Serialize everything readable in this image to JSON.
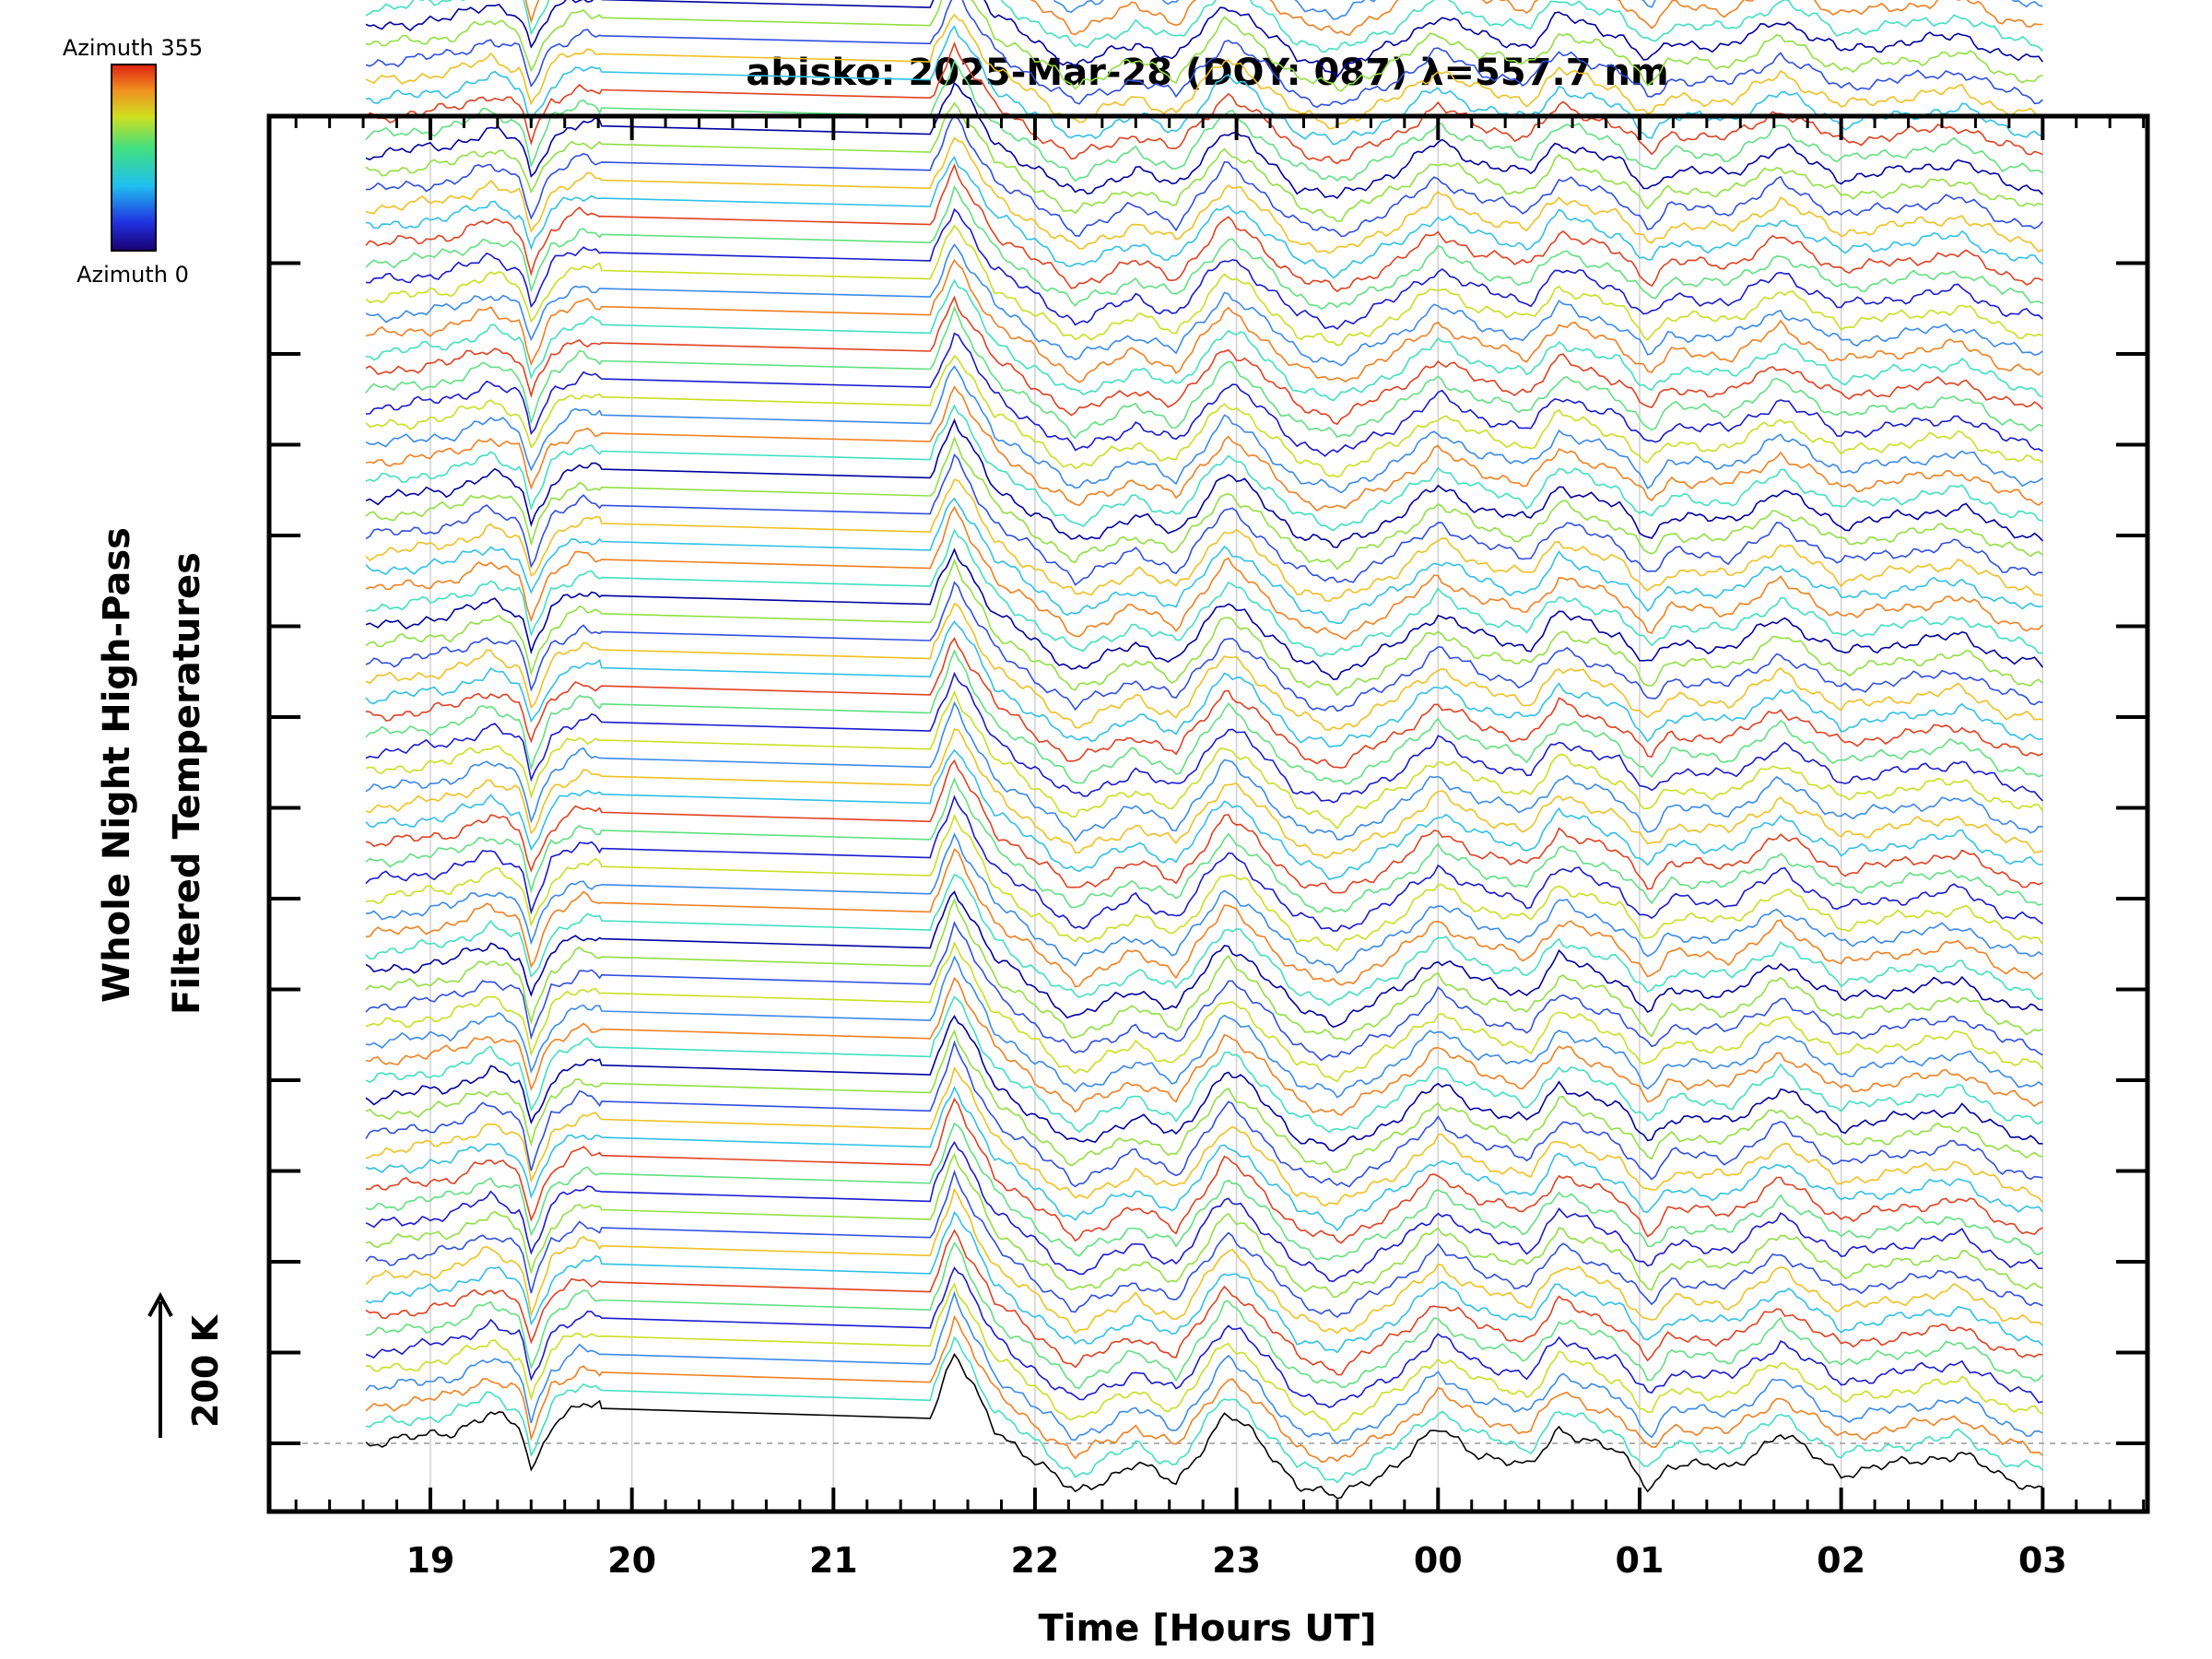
{
  "chart_data": {
    "type": "line",
    "title": "abisko: 2025-Mar-28 (DOY: 087) λ=557.7 nm",
    "xlabel": "Time [Hours UT]",
    "ylabel_line1": "Whole Night High-Pass",
    "ylabel_line2": "Filtered Temperatures",
    "scale_label": "200 K",
    "colorbar": {
      "top_label": "Azimuth 355",
      "bottom_label": "Azimuth 0",
      "colormap": "rainbow"
    },
    "x_ticks": [
      {
        "label": "19",
        "hour": 19
      },
      {
        "label": "20",
        "hour": 20
      },
      {
        "label": "21",
        "hour": 21
      },
      {
        "label": "22",
        "hour": 22
      },
      {
        "label": "23",
        "hour": 23
      },
      {
        "label": "00",
        "hour": 24
      },
      {
        "label": "01",
        "hour": 25
      },
      {
        "label": "02",
        "hour": 26
      },
      {
        "label": "03",
        "hour": 27
      }
    ],
    "xlim_hours": [
      18.2,
      27.52
    ],
    "data_span_hours": [
      18.68,
      27.0
    ],
    "gap_hours": [
      19.85,
      21.48
    ],
    "grid": "vertical-hourly",
    "series_count": 128,
    "stacked": true,
    "series_color_cycle": [
      "#0000a0",
      "#1a1ad0",
      "#2f4fe0",
      "#3a8ae8",
      "#30c0e8",
      "#40e0c0",
      "#60e080",
      "#90e040",
      "#c8e020",
      "#f0c020",
      "#f08020",
      "#e04020"
    ],
    "series_offset_k": 20,
    "profile_points": [
      [
        18.68,
        0
      ],
      [
        18.9,
        10
      ],
      [
        19.1,
        22
      ],
      [
        19.3,
        60
      ],
      [
        19.45,
        30
      ],
      [
        19.5,
        -60
      ],
      [
        19.6,
        40
      ],
      [
        19.75,
        80
      ],
      [
        19.85,
        70
      ],
      [
        21.48,
        50
      ],
      [
        21.6,
        180
      ],
      [
        21.68,
        120
      ],
      [
        21.8,
        30
      ],
      [
        22.2,
        -100
      ],
      [
        22.5,
        -40
      ],
      [
        22.7,
        -80
      ],
      [
        22.95,
        60
      ],
      [
        23.05,
        30
      ],
      [
        23.3,
        -80
      ],
      [
        23.5,
        -110
      ],
      [
        23.8,
        -40
      ],
      [
        24.0,
        30
      ],
      [
        24.2,
        -20
      ],
      [
        24.45,
        -50
      ],
      [
        24.6,
        30
      ],
      [
        24.9,
        -20
      ],
      [
        25.05,
        -90
      ],
      [
        25.15,
        -40
      ],
      [
        25.45,
        -50
      ],
      [
        25.7,
        20
      ],
      [
        26.0,
        -60
      ],
      [
        26.3,
        -40
      ],
      [
        26.6,
        -20
      ],
      [
        26.8,
        -70
      ],
      [
        27.0,
        -90
      ]
    ],
    "profile_amplitude_k": 1,
    "y_ticks_k": [
      0,
      200,
      400,
      600,
      800,
      1000,
      1200,
      1400,
      1600,
      1800,
      2000,
      2200,
      2400,
      2600
    ],
    "baseline_dashed": true
  }
}
